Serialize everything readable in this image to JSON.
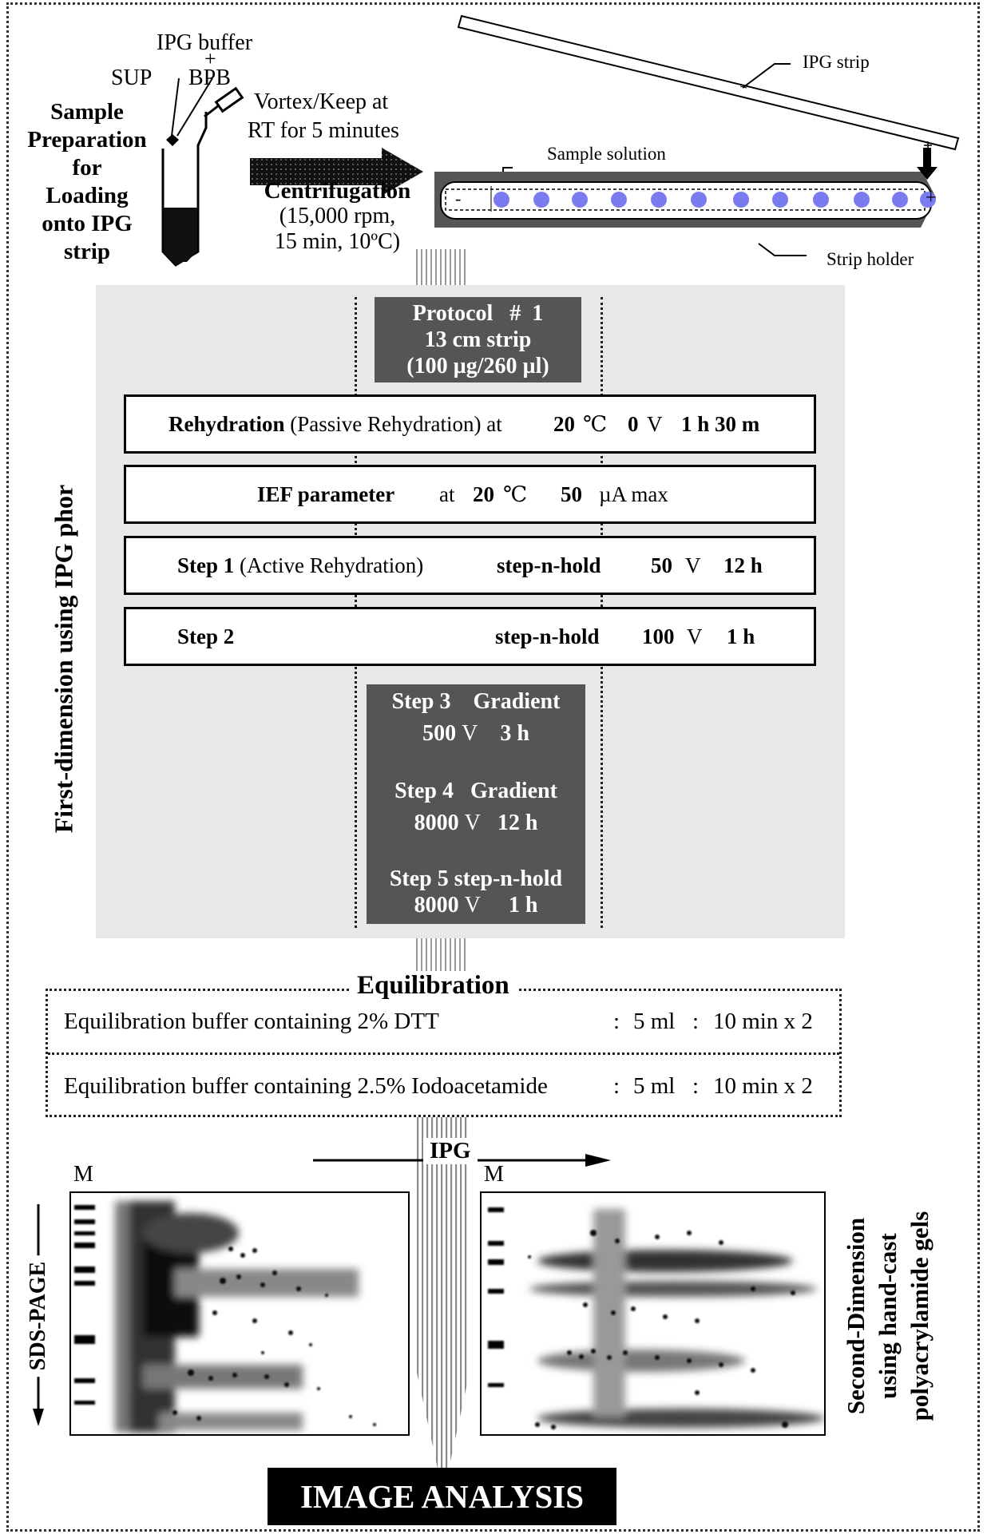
{
  "prep": {
    "ipg_buffer": "IPG buffer",
    "plus": "+",
    "sup": "SUP",
    "bpb": "BPB",
    "title_lines": [
      "Sample",
      "Preparation",
      "for",
      "Loading",
      "onto IPG",
      "strip"
    ],
    "vortex_lines": [
      "Vortex/Keep at",
      "RT for 5 minutes"
    ],
    "centrifugation": "Centrifugation",
    "centrifugation_params": [
      "(15,000 rpm,",
      "15 min, 10ºC)"
    ]
  },
  "strip": {
    "ipg_strip_label": "IPG strip",
    "sample_solution_label": "Sample solution",
    "strip_holder_label": "Strip holder",
    "minus": "-",
    "plus": "+",
    "dot_color": "#7b7bf0"
  },
  "first_dimension": {
    "side_label": "First-dimension using IPG phor",
    "protocol": [
      "Protocol   #  1",
      "13 cm strip",
      "(100 µg/260 µl)"
    ],
    "rehydration": {
      "bold": "Rehydration",
      "normal": " (Passive Rehydration)  at",
      "temp": "20",
      "unit_c": "℃",
      "volts": "0",
      "v": "V",
      "time": "1 h 30 m"
    },
    "ief": {
      "bold": "IEF parameter",
      "at": "at",
      "temp": "20",
      "unit_c": "℃",
      "current": "50",
      "unit": "µA max"
    },
    "step1": {
      "bold": "Step 1",
      "normal": " (Active Rehydration)",
      "mode": "step-n-hold",
      "volts": "50",
      "v": "V",
      "time": "12 h"
    },
    "step2": {
      "bold": "Step 2",
      "mode": "step-n-hold",
      "volts": "100",
      "v": "V",
      "time": "1 h"
    },
    "step3": {
      "title": "Step 3    Gradient",
      "volts": "500",
      "v": "V",
      "time": "3 h"
    },
    "step4": {
      "title": "Step 4   Gradient",
      "volts": "8000",
      "v": "V",
      "time": "12 h"
    },
    "step5": {
      "title": "Step 5 step-n-hold",
      "volts": "8000",
      "v": "V",
      "time": "1 h"
    }
  },
  "equilibration": {
    "title": "Equilibration",
    "rows": [
      {
        "buffer": "Equilibration buffer containing 2% DTT",
        "sep1": ":",
        "volume": "5 ml",
        "sep2": ":",
        "time": "10 min x 2"
      },
      {
        "buffer": "Equilibration buffer containing 2.5% Iodoacetamide",
        "sep1": ":",
        "volume": "5 ml",
        "sep2": ":",
        "time": "10 min x 2"
      }
    ]
  },
  "second_dimension": {
    "ipg": "IPG",
    "marker_left": "M",
    "marker_right": "M",
    "sds_page": "SDS-PAGE",
    "side_label_lines": [
      "Second-Dimension",
      "using hand-cast",
      "polyacrylamide gels"
    ]
  },
  "final": {
    "label": "IMAGE ANALYSIS"
  }
}
